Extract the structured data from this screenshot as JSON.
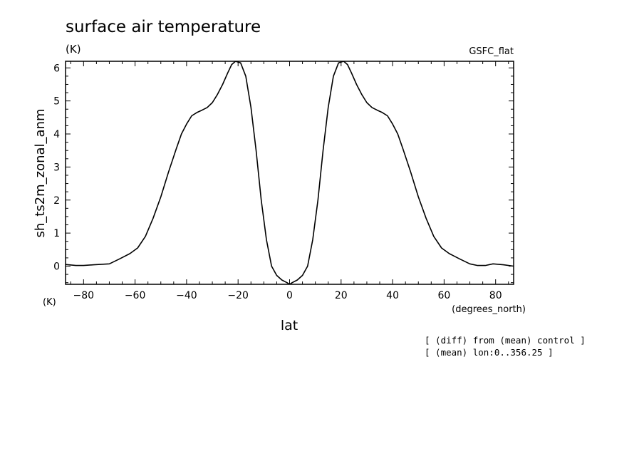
{
  "chart_data": {
    "type": "line",
    "title": "surface air temperature",
    "units_top": "(K)",
    "units_left": "(K)",
    "source_label": "GSFC_flat",
    "xlabel": "lat",
    "x_units": "(degrees_north)",
    "ylabel": "sh_ts2m_zonal_anm",
    "xlim": [
      -87,
      87
    ],
    "ylim": [
      -0.55,
      6.2
    ],
    "xticks": [
      -80,
      -60,
      -40,
      -20,
      0,
      20,
      40,
      60,
      80
    ],
    "yticks": [
      0,
      1,
      2,
      3,
      4,
      5,
      6
    ],
    "notes": [
      "[ (diff) from (mean) control ]",
      "[ (mean) lon:0..356.25 ]"
    ],
    "series": [
      {
        "x": [
          -87,
          -83,
          -80,
          -76,
          -70,
          -66,
          -62,
          -59,
          -56,
          -53,
          -50,
          -47,
          -44,
          -42,
          -40,
          -38,
          -36,
          -34,
          -32,
          -30,
          -28,
          -26,
          -24,
          -22.5,
          -21,
          -19,
          -17,
          -15,
          -13,
          -11,
          -9,
          -7,
          -5,
          -3,
          -1,
          0,
          1,
          3,
          5,
          7,
          9,
          11,
          13,
          15,
          17,
          19,
          21,
          22.5,
          24,
          26,
          28,
          30,
          32,
          34,
          36,
          38,
          40,
          42,
          44,
          47,
          50,
          53,
          56,
          59,
          62,
          66,
          70,
          73,
          76,
          79,
          83,
          87
        ],
        "y": [
          0.05,
          0.02,
          0.02,
          0.04,
          0.07,
          0.22,
          0.38,
          0.55,
          0.9,
          1.45,
          2.1,
          2.85,
          3.55,
          4.0,
          4.3,
          4.55,
          4.65,
          4.72,
          4.8,
          4.95,
          5.2,
          5.5,
          5.85,
          6.1,
          6.2,
          6.15,
          5.75,
          4.8,
          3.5,
          2.0,
          0.8,
          0.0,
          -0.28,
          -0.42,
          -0.5,
          -0.55,
          -0.5,
          -0.42,
          -0.28,
          0.0,
          0.8,
          2.0,
          3.5,
          4.8,
          5.75,
          6.15,
          6.2,
          6.1,
          5.85,
          5.5,
          5.2,
          4.95,
          4.8,
          4.72,
          4.65,
          4.55,
          4.3,
          4.0,
          3.55,
          2.85,
          2.1,
          1.45,
          0.9,
          0.55,
          0.38,
          0.22,
          0.07,
          0.02,
          0.02,
          0.07,
          0.04,
          0.0
        ]
      }
    ]
  }
}
